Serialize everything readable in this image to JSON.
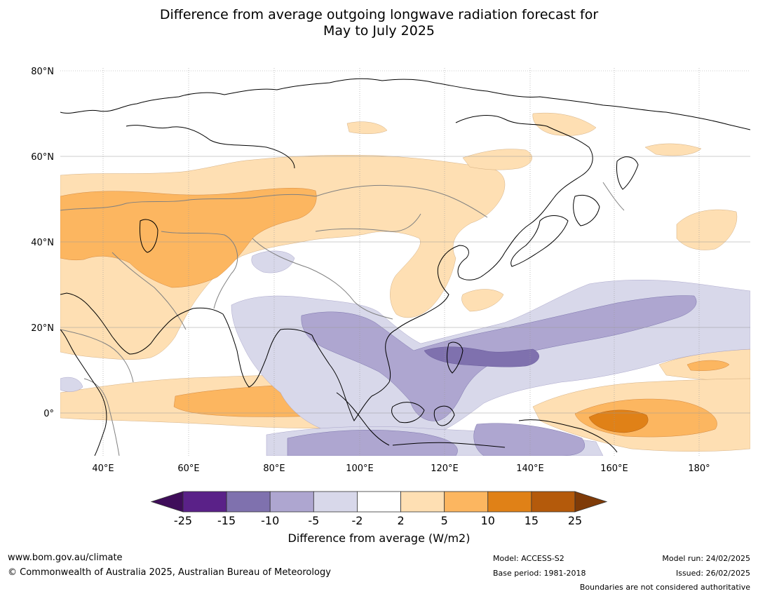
{
  "title": {
    "line1": "Difference from average outgoing longwave radiation forecast for",
    "line2": "May to July 2025"
  },
  "map": {
    "lat_labels": [
      "80°N",
      "60°N",
      "40°N",
      "20°N",
      "0°"
    ],
    "lon_labels": [
      "40°E",
      "60°E",
      "80°E",
      "100°E",
      "120°E",
      "140°E",
      "160°E",
      "180°"
    ],
    "extent": {
      "lon": [
        30,
        192
      ],
      "lat": [
        -10,
        81
      ]
    },
    "grid": true
  },
  "colorbar": {
    "ticks": [
      "-25",
      "-15",
      "-10",
      "-5",
      "-2",
      "2",
      "5",
      "10",
      "15",
      "25"
    ],
    "colors": [
      "#3f0d5a",
      "#5a2188",
      "#7f71ae",
      "#aea6d0",
      "#d8d8ea",
      "#ffffff",
      "#fedfb3",
      "#fcb660",
      "#e08117",
      "#b45a0b",
      "#7f3b08"
    ],
    "title": "Difference from average (W/m2)"
  },
  "footer": {
    "url": "www.bom.gov.au/climate",
    "copyright": "© Commonwealth of Australia 2025, Australian Bureau of Meteorology",
    "model": "Model: ACCESS-S2",
    "base_period": "Base period: 1981-2018",
    "model_run": "Model run: 24/02/2025",
    "issued": "Issued: 26/02/2025",
    "boundaries": "Boundaries are not considered authoritative"
  }
}
